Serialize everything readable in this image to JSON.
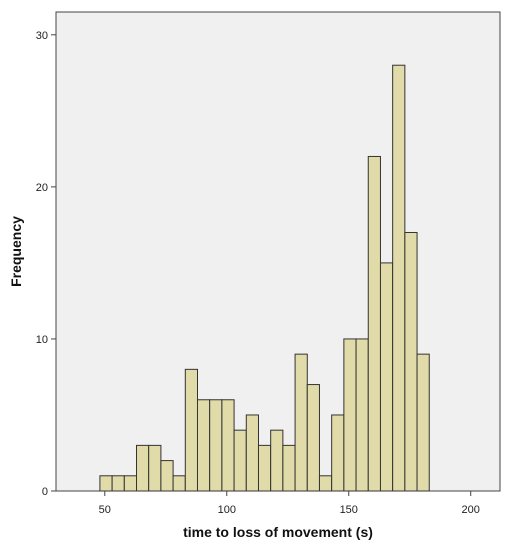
{
  "chart_data": {
    "type": "bar",
    "title": "",
    "xlabel": "time to loss of movement (s)",
    "ylabel": "Frequency",
    "xlim": [
      30,
      212
    ],
    "ylim": [
      0,
      31.5
    ],
    "xticks": [
      "50",
      "100",
      "150",
      "200"
    ],
    "yticks": [
      "0",
      "10",
      "20",
      "30"
    ],
    "bin_width": 5,
    "bins": [
      {
        "start": 48,
        "end": 53,
        "value": 1
      },
      {
        "start": 53,
        "end": 58,
        "value": 1
      },
      {
        "start": 58,
        "end": 63,
        "value": 1
      },
      {
        "start": 63,
        "end": 68,
        "value": 3
      },
      {
        "start": 68,
        "end": 73,
        "value": 3
      },
      {
        "start": 73,
        "end": 78,
        "value": 2
      },
      {
        "start": 78,
        "end": 83,
        "value": 1
      },
      {
        "start": 83,
        "end": 88,
        "value": 8
      },
      {
        "start": 88,
        "end": 93,
        "value": 6
      },
      {
        "start": 93,
        "end": 98,
        "value": 6
      },
      {
        "start": 98,
        "end": 103,
        "value": 6
      },
      {
        "start": 103,
        "end": 108,
        "value": 4
      },
      {
        "start": 108,
        "end": 113,
        "value": 5
      },
      {
        "start": 113,
        "end": 118,
        "value": 3
      },
      {
        "start": 118,
        "end": 123,
        "value": 4
      },
      {
        "start": 123,
        "end": 128,
        "value": 3
      },
      {
        "start": 128,
        "end": 133,
        "value": 9
      },
      {
        "start": 133,
        "end": 138,
        "value": 7
      },
      {
        "start": 138,
        "end": 143,
        "value": 1
      },
      {
        "start": 143,
        "end": 148,
        "value": 5
      },
      {
        "start": 148,
        "end": 153,
        "value": 10
      },
      {
        "start": 153,
        "end": 158,
        "value": 10
      },
      {
        "start": 158,
        "end": 163,
        "value": 22
      },
      {
        "start": 163,
        "end": 168,
        "value": 15
      },
      {
        "start": 168,
        "end": 173,
        "value": 28
      },
      {
        "start": 173,
        "end": 178,
        "value": 17
      },
      {
        "start": 178,
        "end": 183,
        "value": 9
      }
    ],
    "grid": false,
    "legend": "none",
    "colors": {
      "bar_fill": "#e0dba8",
      "bar_stroke": "#333333",
      "plot_background": "#f0f0f0",
      "axis": "#444444"
    }
  }
}
